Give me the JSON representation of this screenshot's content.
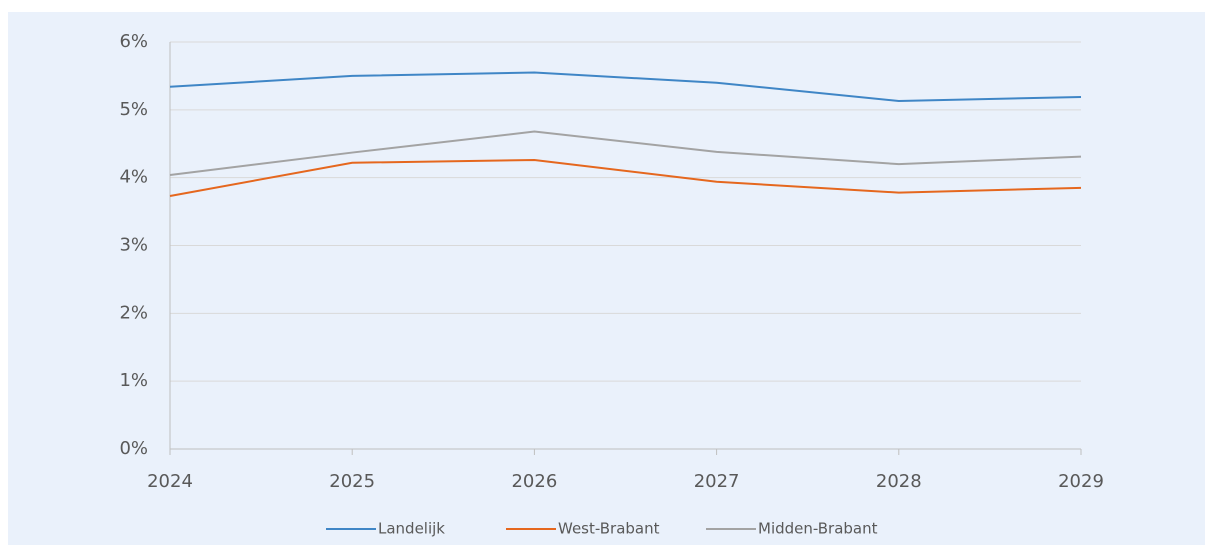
{
  "chart_data": {
    "type": "line",
    "categories": [
      "2024",
      "2025",
      "2026",
      "2027",
      "2028",
      "2029"
    ],
    "series": [
      {
        "name": "Landelijk",
        "color": "#3f86c6",
        "values": [
          5.34,
          5.5,
          5.55,
          5.4,
          5.13,
          5.19
        ]
      },
      {
        "name": "West-Brabant",
        "color": "#e5671e",
        "values": [
          3.73,
          4.22,
          4.26,
          3.94,
          3.78,
          3.85
        ]
      },
      {
        "name": "Midden-Brabant",
        "color": "#a3a3a3",
        "values": [
          4.04,
          4.37,
          4.68,
          4.38,
          4.2,
          4.31
        ]
      }
    ],
    "ylim": [
      0,
      6
    ],
    "yticks": [
      {
        "value": 0,
        "label": "0%"
      },
      {
        "value": 1,
        "label": "1%"
      },
      {
        "value": 2,
        "label": "2%"
      },
      {
        "value": 3,
        "label": "3%"
      },
      {
        "value": 4,
        "label": "4%"
      },
      {
        "value": 5,
        "label": "5%"
      },
      {
        "value": 6,
        "label": "6%"
      }
    ],
    "grid": true
  }
}
